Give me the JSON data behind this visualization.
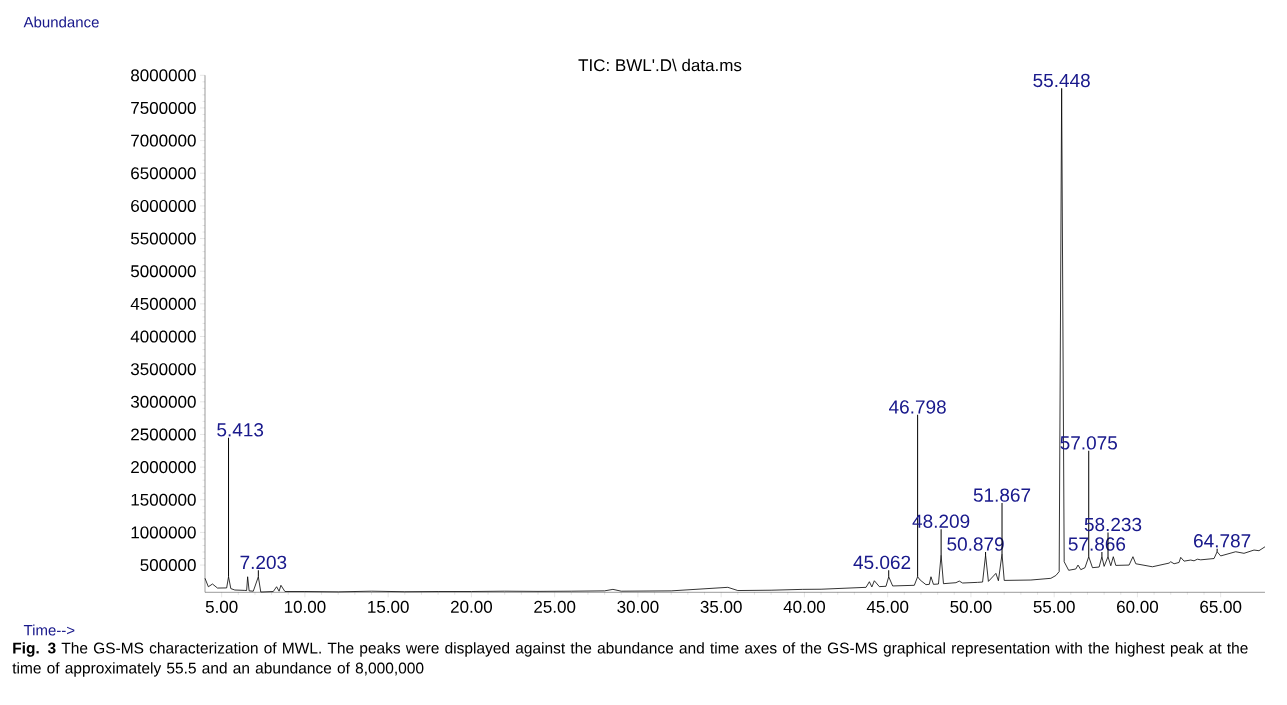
{
  "chart_data": {
    "type": "line",
    "title": "TIC: BWL'.D\\ data.ms",
    "xlabel": "Time-->",
    "ylabel": "Abundance",
    "color": "#000000",
    "x": [
      4.0,
      4.2,
      4.45,
      4.75,
      5.3,
      5.413,
      5.55,
      5.79,
      6.39,
      6.5,
      6.56,
      6.65,
      6.9,
      7.203,
      7.35,
      8.1,
      8.3,
      8.45,
      8.56,
      8.8,
      10,
      12,
      14,
      16,
      18,
      20,
      22,
      24,
      26,
      28,
      28.5,
      29,
      32,
      35.4,
      36,
      38,
      39.9,
      41,
      43.7,
      43.9,
      44.05,
      44.2,
      44.5,
      44.9,
      45.062,
      45.3,
      46.6,
      46.798,
      46.95,
      47.3,
      47.5,
      47.6,
      47.75,
      48.05,
      48.209,
      48.35,
      49.1,
      49.3,
      49.5,
      50.4,
      50.7,
      50.879,
      51.05,
      51.5,
      51.65,
      51.867,
      52.0,
      53.6,
      54.8,
      55.1,
      55.3,
      55.448,
      55.6,
      55.87,
      56.3,
      56.43,
      56.6,
      56.85,
      57.075,
      57.3,
      57.7,
      57.866,
      58.0,
      58.233,
      58.4,
      58.55,
      58.7,
      59.5,
      59.73,
      59.9,
      60.9,
      61.9,
      62.0,
      62.2,
      62.5,
      62.6,
      62.8,
      63.2,
      63.4,
      63.6,
      63.8,
      64.6,
      64.787,
      65.0,
      65.9,
      66.4,
      67.0,
      67.3,
      67.66
    ],
    "values": [
      297000,
      168000,
      210000,
      148000,
      150000,
      321000,
      140000,
      118000,
      112000,
      110000,
      321000,
      105000,
      100000,
      321000,
      87000,
      95000,
      168000,
      100000,
      190000,
      95000,
      95000,
      90000,
      100000,
      92000,
      95000,
      95000,
      100000,
      97000,
      100000,
      105000,
      128000,
      100000,
      105000,
      159000,
      110000,
      115000,
      128000,
      130000,
      159000,
      245000,
      165000,
      260000,
      170000,
      175000,
      321000,
      180000,
      190000,
      321000,
      271000,
      200000,
      205000,
      321000,
      205000,
      210000,
      653000,
      215000,
      230000,
      255000,
      225000,
      235000,
      240000,
      653000,
      250000,
      373000,
      260000,
      669000,
      265000,
      271000,
      297000,
      340000,
      400000,
      7800000,
      551000,
      420000,
      440000,
      500000,
      430000,
      460000,
      628000,
      460000,
      470000,
      628000,
      480000,
      628000,
      490000,
      628000,
      495000,
      500000,
      628000,
      520000,
      474000,
      530000,
      551000,
      520000,
      540000,
      618000,
      560000,
      577000,
      565000,
      590000,
      580000,
      600000,
      704000,
      640000,
      704000,
      680000,
      730000,
      720000,
      780000
    ],
    "xlim": [
      4.0,
      67.66
    ],
    "ylim": [
      83000,
      8000000
    ],
    "xticks": [
      {
        "value": 5,
        "label": "5.00"
      },
      {
        "value": 10,
        "label": "10.00"
      },
      {
        "value": 15,
        "label": "15.00"
      },
      {
        "value": 20,
        "label": "20.00"
      },
      {
        "value": 25,
        "label": "25.00"
      },
      {
        "value": 30,
        "label": "30.00"
      },
      {
        "value": 35,
        "label": "35.00"
      },
      {
        "value": 40,
        "label": "40.00"
      },
      {
        "value": 45,
        "label": "45.00"
      },
      {
        "value": 50,
        "label": "50.00"
      },
      {
        "value": 55,
        "label": "55.00"
      },
      {
        "value": 60,
        "label": "60.00"
      },
      {
        "value": 65,
        "label": "65.00"
      }
    ],
    "yticks": [
      500000,
      1000000,
      1500000,
      2000000,
      2500000,
      3000000,
      3500000,
      4000000,
      4500000,
      5000000,
      5500000,
      6000000,
      6500000,
      7000000,
      7500000,
      8000000
    ],
    "annotations": [
      {
        "text": "5.413",
        "x": 5.413,
        "y": 321000
      },
      {
        "text": "7.203",
        "x": 7.203,
        "y": 321000
      },
      {
        "text": "45.062",
        "x": 45.062,
        "y": 321000
      },
      {
        "text": "46.798",
        "x": 46.798,
        "y": 321000
      },
      {
        "text": "48.209",
        "x": 48.209,
        "y": 653000
      },
      {
        "text": "50.879",
        "x": 50.879,
        "y": 653000
      },
      {
        "text": "51.867",
        "x": 51.867,
        "y": 669000
      },
      {
        "text": "55.448",
        "x": 55.448,
        "y": 7800000
      },
      {
        "text": "57.075",
        "x": 57.075,
        "y": 628000
      },
      {
        "text": "57.866",
        "x": 57.866,
        "y": 628000
      },
      {
        "text": "58.233",
        "x": 58.233,
        "y": 628000
      },
      {
        "text": "64.787",
        "x": 64.787,
        "y": 704000
      },
      "**Fig. 3** The GS-MS characterization of MWL. The peaks were displayed against the abundance and time axes of the GS-MS graphical representation with the highest peak at the time of approximately 55.5 and an abundance of 8,000,000"
    ]
  }
}
